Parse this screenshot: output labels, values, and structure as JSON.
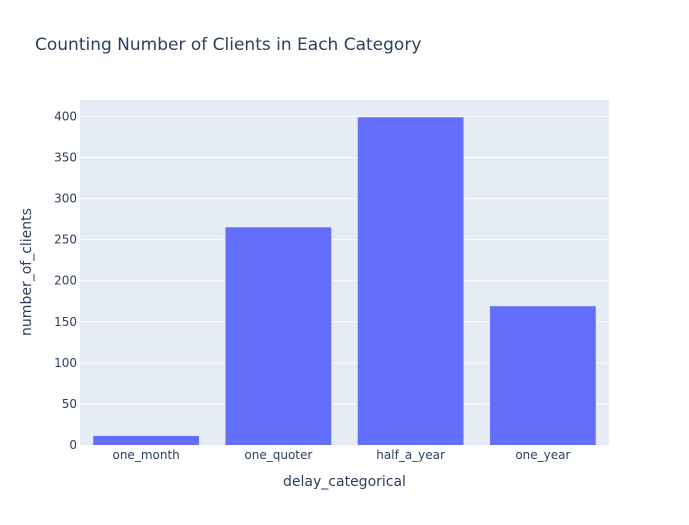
{
  "chart_data": {
    "type": "bar",
    "title": "Counting Number of Clients in Each Category",
    "xlabel": "delay_categorical",
    "ylabel": "number_of_clients",
    "categories": [
      "one_month",
      "one_quoter",
      "half_a_year",
      "one_year"
    ],
    "values": [
      11,
      265,
      399,
      169
    ],
    "ylim": [
      0,
      420
    ],
    "yticks": [
      0,
      50,
      100,
      150,
      200,
      250,
      300,
      350,
      400
    ],
    "grid": true,
    "legend": "none",
    "bar_color": "#636efa",
    "plot_background": "#e5ecf6",
    "text_color": "#2a3f5f"
  }
}
